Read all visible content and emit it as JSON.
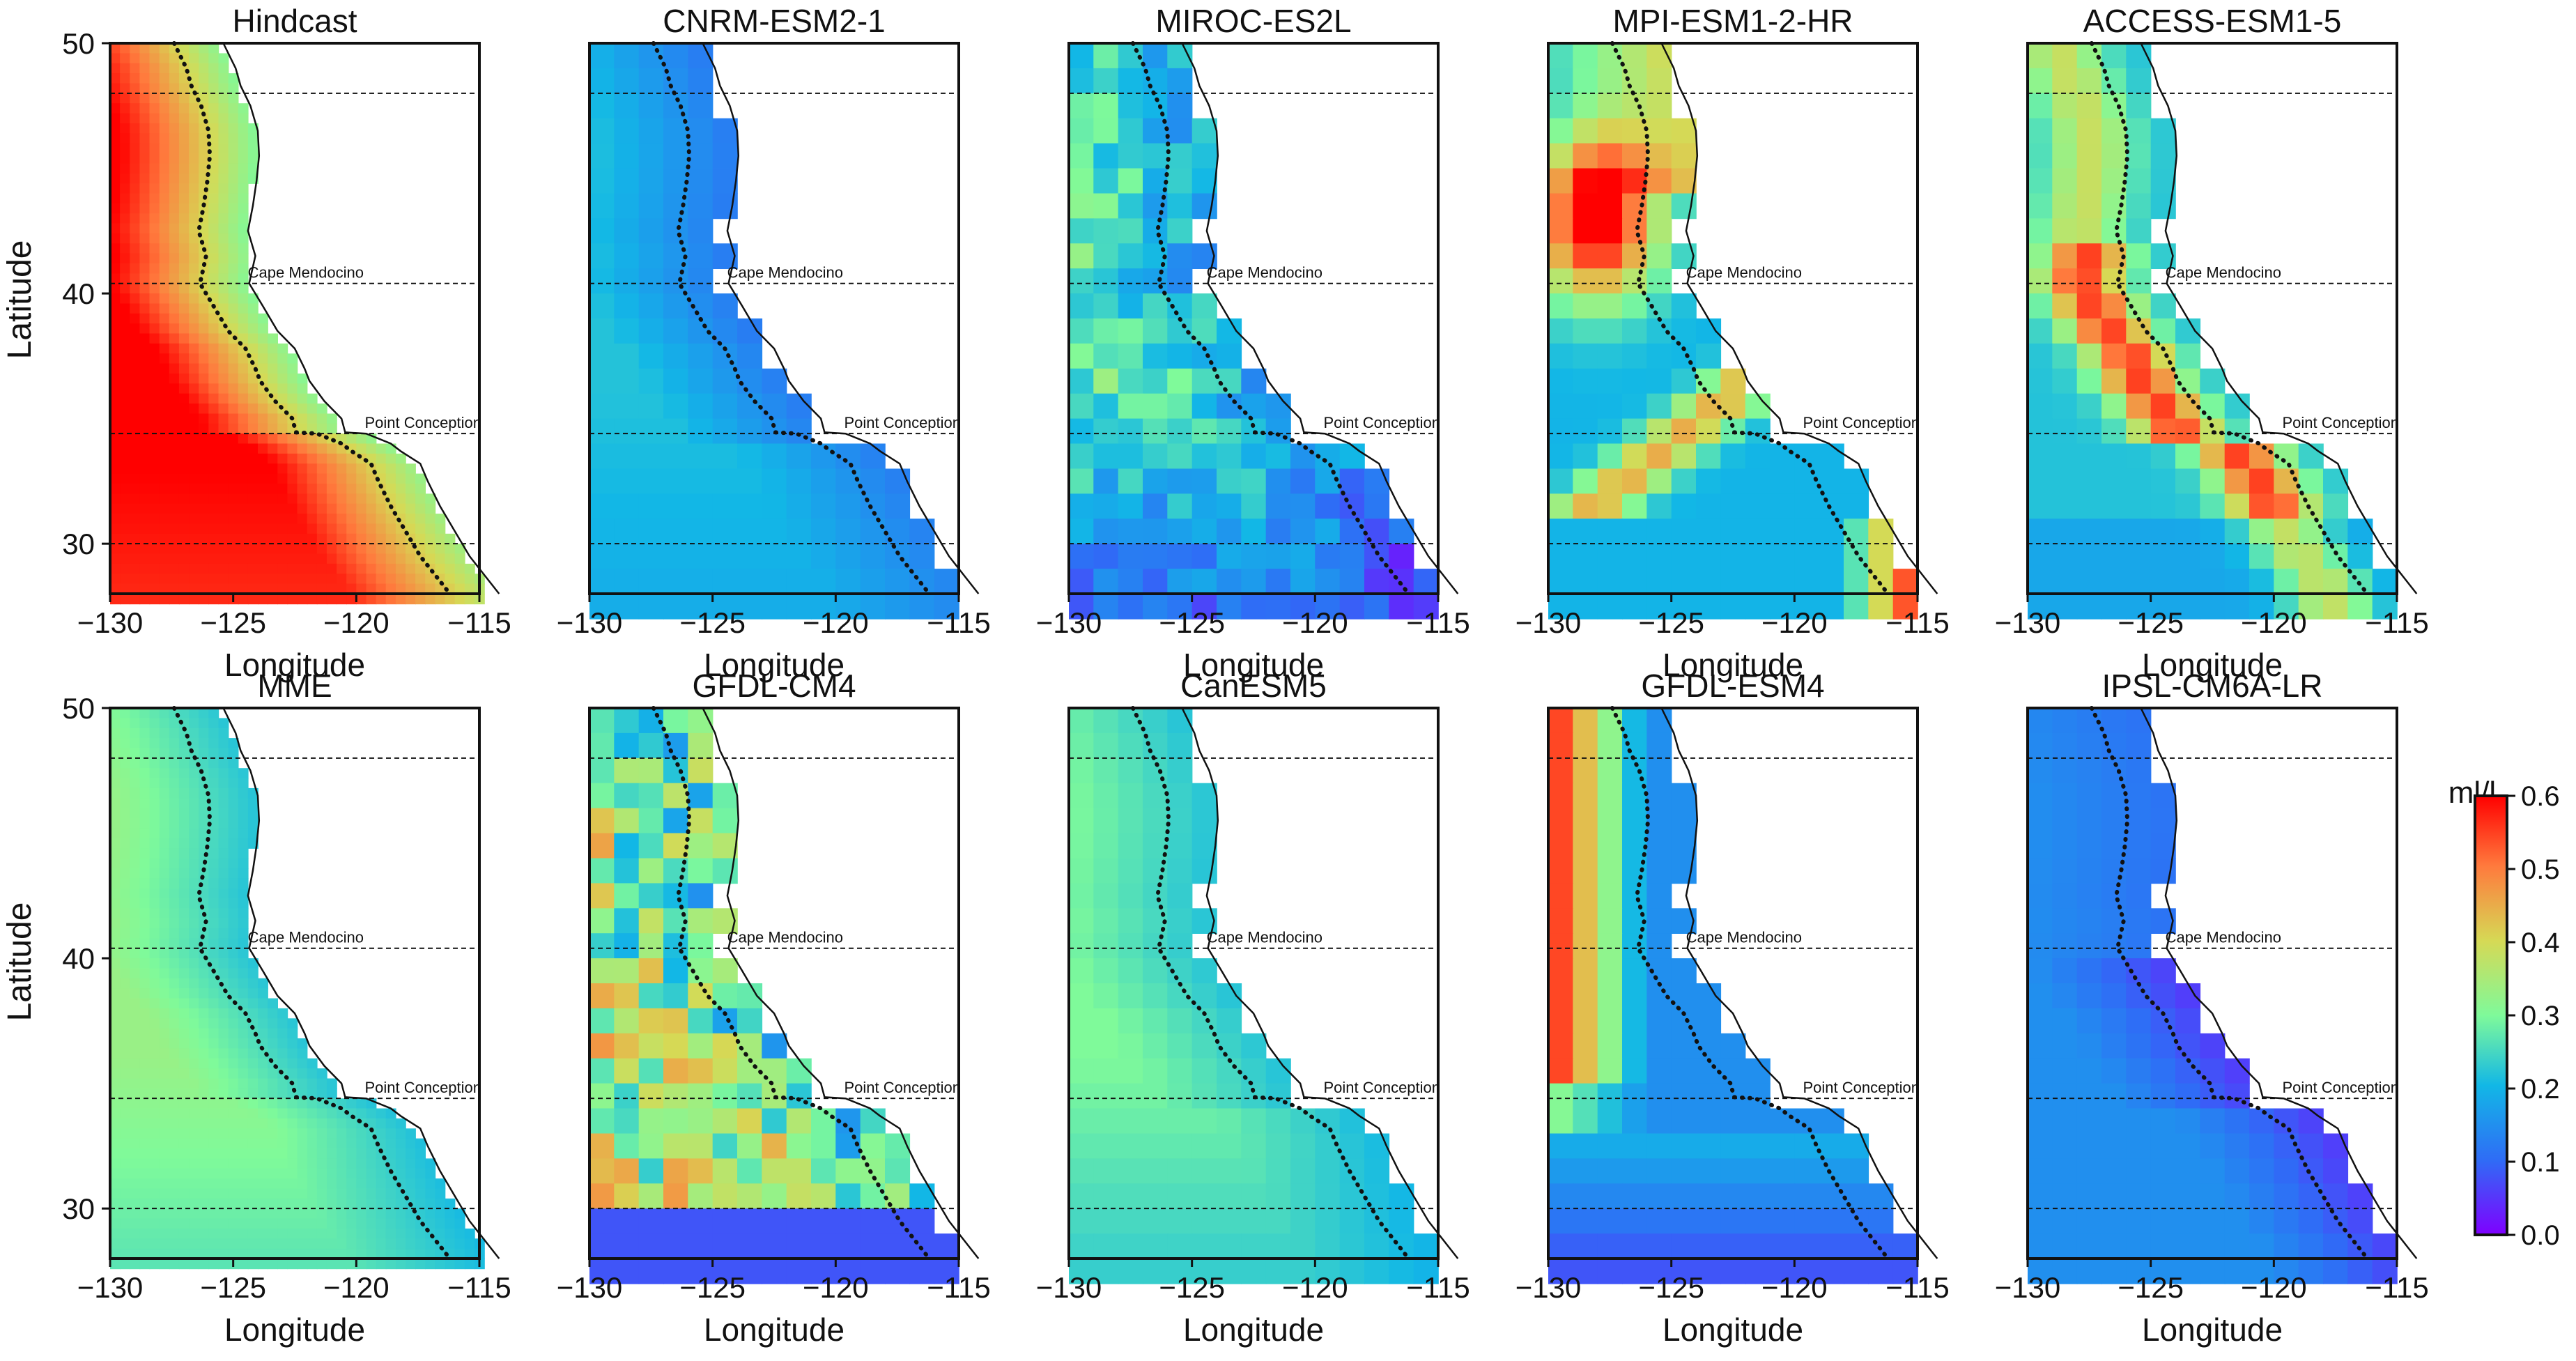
{
  "figure": {
    "colorbar": {
      "title": "ml/l",
      "vmin": 0.0,
      "vmax": 0.6,
      "ticks": [
        "0.0",
        "0.1",
        "0.2",
        "0.3",
        "0.4",
        "0.5",
        "0.6"
      ],
      "colormap": "rainbow (purple-blue-cyan-green-yellow-orange-red)"
    },
    "axes": {
      "xlabel": "Longitude",
      "ylabel": "Latitude",
      "xticks": [
        "−130",
        "−125",
        "−120",
        "−115"
      ],
      "yticks": [
        "50",
        "40",
        "30"
      ],
      "xlim": [
        -130,
        -115
      ],
      "ylim": [
        28,
        50
      ]
    },
    "reference_lines": [
      {
        "lat": 48,
        "label": ""
      },
      {
        "lat": 40.4,
        "label": "Cape Mendocino"
      },
      {
        "lat": 34.4,
        "label": "Point Conception"
      },
      {
        "lat": 30,
        "label": ""
      }
    ],
    "panels": [
      {
        "title": "Hindcast",
        "row": 0,
        "col": 0,
        "offshore": 0.62,
        "nearshore": 0.3,
        "south": 0.45,
        "pattern": "high-offshore"
      },
      {
        "title": "CNRM-ESM2-1",
        "row": 0,
        "col": 1,
        "offshore": 0.22,
        "nearshore": 0.12,
        "south": 0.15,
        "pattern": "low"
      },
      {
        "title": "MIROC-ES2L",
        "row": 0,
        "col": 2,
        "offshore": 0.28,
        "nearshore": 0.15,
        "south": 0.05,
        "pattern": "low-patchy"
      },
      {
        "title": "MPI-ESM1-2-HR",
        "row": 0,
        "col": 3,
        "offshore": 0.3,
        "nearshore": 0.4,
        "south": 0.55,
        "pattern": "high-north-band"
      },
      {
        "title": "ACCESS-ESM1-5",
        "row": 0,
        "col": 4,
        "offshore": 0.22,
        "nearshore": 0.55,
        "south": 0.3,
        "pattern": "high-band"
      },
      {
        "title": "MME",
        "row": 1,
        "col": 0,
        "offshore": 0.33,
        "nearshore": 0.22,
        "south": 0.18,
        "pattern": "smooth"
      },
      {
        "title": "GFDL-CM4",
        "row": 1,
        "col": 1,
        "offshore": 0.35,
        "nearshore": 0.2,
        "south": 0.35,
        "pattern": "patchy-warm"
      },
      {
        "title": "CanESM5",
        "row": 1,
        "col": 2,
        "offshore": 0.3,
        "nearshore": 0.22,
        "south": 0.15,
        "pattern": "smooth"
      },
      {
        "title": "GFDL-ESM4",
        "row": 1,
        "col": 3,
        "offshore": 0.6,
        "nearshore": 0.15,
        "south": 0.08,
        "pattern": "high-west"
      },
      {
        "title": "IPSL-CM6A-LR",
        "row": 1,
        "col": 4,
        "offshore": 0.15,
        "nearshore": 0.05,
        "south": 0.12,
        "pattern": "very-low"
      }
    ]
  }
}
